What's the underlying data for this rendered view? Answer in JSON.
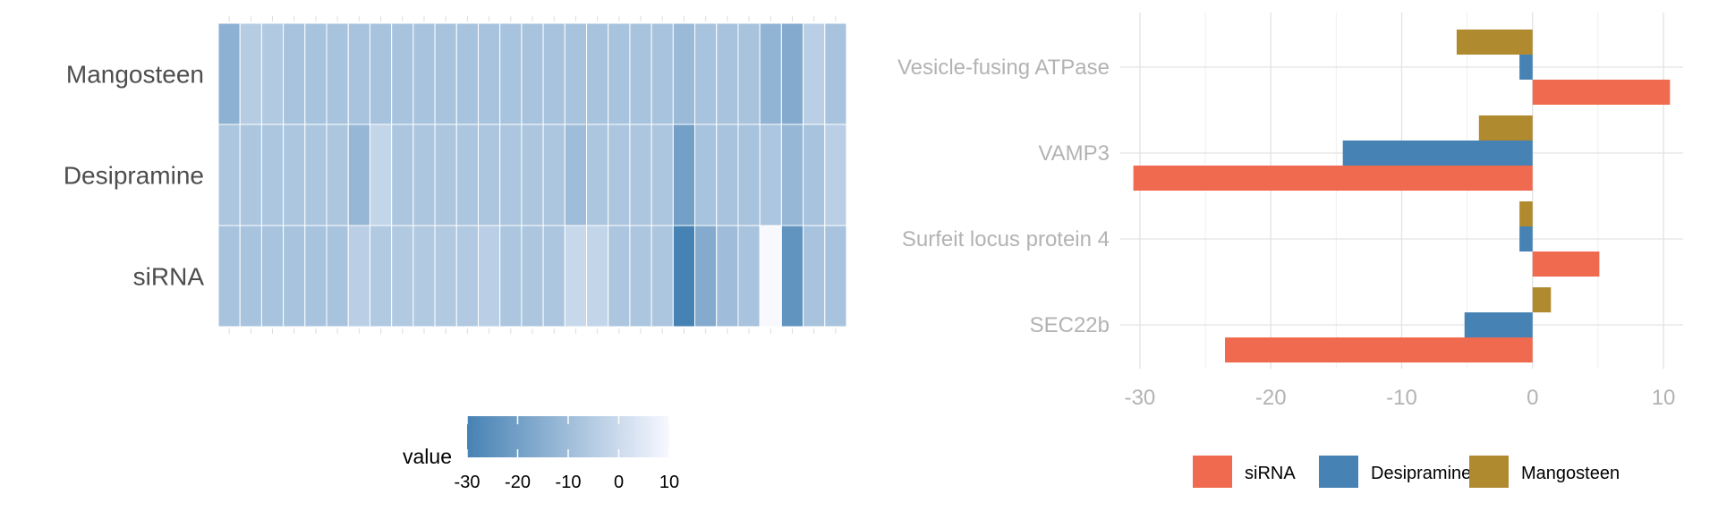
{
  "chart_data": [
    {
      "type": "heatmap",
      "rows": [
        "siRNA",
        "Desipramine",
        "Mangosteen"
      ],
      "columns": 29,
      "values": [
        [
          -8,
          -8,
          -8,
          -8,
          -8,
          -8,
          -4,
          -6,
          -6,
          -6,
          -6,
          -6,
          -4,
          -7,
          -7,
          -7,
          -1,
          -2,
          -7,
          -7,
          -7,
          -30,
          -16,
          -10,
          -8,
          12,
          -24,
          -8,
          -8
        ],
        [
          -7,
          -7,
          -7,
          -7,
          -7,
          -7,
          -12,
          -2,
          -7,
          -7,
          -7,
          -7,
          -7,
          -7,
          -7,
          -7,
          -10,
          -7,
          -7,
          -7,
          -7,
          -20,
          -8,
          -8,
          -8,
          -7,
          -12,
          -8,
          -4
        ],
        [
          -14,
          -5,
          -6,
          -8,
          -8,
          -8,
          -8,
          -8,
          -8,
          -8,
          -8,
          -8,
          -8,
          -8,
          -8,
          -8,
          -8,
          -8,
          -8,
          -8,
          -8,
          -11,
          -8,
          -8,
          -8,
          -13,
          -16,
          -4,
          -8
        ]
      ],
      "color_scale": {
        "min": -30,
        "max": 10,
        "low_color": "#4682B4",
        "high_color": "#F8F8FF"
      },
      "legend": {
        "title": "value",
        "ticks": [
          -30,
          -20,
          -10,
          0,
          10
        ],
        "tick_labels": [
          "-30",
          "-20",
          "-10",
          "0",
          "10"
        ],
        "position": "bottom"
      },
      "grid": false
    },
    {
      "type": "bar",
      "orientation": "horizontal",
      "categories": [
        "SEC22b",
        "Surfeit locus protein 4",
        "VAMP3",
        "Vesicle-fusing ATPase"
      ],
      "series": [
        {
          "name": "siRNA",
          "color": "#F06A50",
          "values": [
            -23.5,
            5.1,
            -30.5,
            10.5
          ]
        },
        {
          "name": "Desipramine",
          "color": "#4682B4",
          "values": [
            -5.2,
            -1.0,
            -14.5,
            -1.0
          ]
        },
        {
          "name": "Mangosteen",
          "color": "#B08A2E",
          "values": [
            1.4,
            -1.0,
            -4.1,
            -5.8
          ]
        }
      ],
      "xlim": [
        -31.5,
        11.5
      ],
      "xticks": [
        -30,
        -20,
        -10,
        0,
        10
      ],
      "xtick_labels": [
        "-30",
        "-20",
        "-10",
        "0",
        "10"
      ],
      "legend": {
        "entries": [
          "siRNA",
          "Desipramine",
          "Mangosteen"
        ],
        "position": "bottom"
      },
      "grid": true
    }
  ]
}
